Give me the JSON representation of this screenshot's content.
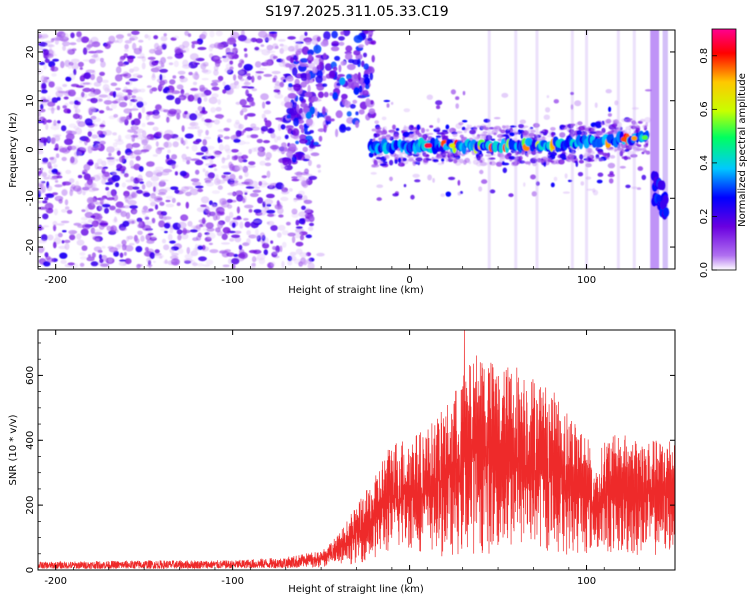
{
  "title": "S197.2025.311.05.33.C19",
  "chart_data": [
    {
      "type": "heatmap",
      "xlabel": "Height of straight line (km)",
      "ylabel": "Frequency (Hz)",
      "xlim": [
        -210,
        150
      ],
      "ylim": [
        -24.5,
        24.5
      ],
      "xticks": [
        -200,
        -100,
        0,
        100
      ],
      "yticks": [
        -20,
        -10,
        0,
        10,
        20
      ],
      "colorbar": {
        "label": "Normalized spectral amplitude",
        "range": [
          0.0,
          0.9
        ],
        "ticks": [
          "0.0",
          "0.2",
          "0.4",
          "0.6",
          "0.8"
        ],
        "ticks_values": [
          0.0,
          0.2,
          0.4,
          0.6,
          0.8
        ],
        "colors": [
          "#ffffff",
          "#b070f0",
          "#6a00e0",
          "#0000ff",
          "#00c8ff",
          "#00ff60",
          "#c8ff00",
          "#ffc800",
          "#ff0000",
          "#ff0090"
        ]
      },
      "features": {
        "noise_region_x": [
          -210,
          -60
        ],
        "noise_band_y": [
          -24,
          24
        ],
        "upper_cluster_x": [
          -70,
          -20
        ],
        "upper_cluster_y": [
          5,
          15
        ],
        "carrier_line": [
          [
            -22,
            0.5
          ],
          [
            0,
            0.8
          ],
          [
            40,
            0.8
          ],
          [
            80,
            1.0
          ],
          [
            110,
            1.8
          ],
          [
            135,
            2.5
          ]
        ],
        "carrier_peak_x": [
          10,
          125
        ],
        "lower_right_feature": [
          [
            138,
            -8
          ],
          [
            145,
            -11
          ]
        ]
      }
    },
    {
      "type": "line",
      "xlabel": "Height of straight line (km)",
      "ylabel": "SNR (10 * v/v)",
      "xlim": [
        -210,
        150
      ],
      "ylim": [
        0,
        740
      ],
      "xticks": [
        -200,
        -100,
        0,
        100
      ],
      "yticks": [
        0,
        200,
        400,
        600
      ],
      "color": "#ee2a2a",
      "envelope": {
        "x": [
          -210,
          -150,
          -100,
          -70,
          -50,
          -40,
          -30,
          -20,
          -15,
          -10,
          0,
          10,
          20,
          30,
          40,
          50,
          60,
          70,
          80,
          90,
          100,
          105,
          110,
          120,
          130,
          140,
          150
        ],
        "upper": [
          25,
          30,
          30,
          40,
          60,
          110,
          200,
          280,
          350,
          400,
          410,
          440,
          500,
          600,
          690,
          620,
          640,
          600,
          560,
          490,
          430,
          300,
          410,
          420,
          410,
          400,
          420
        ],
        "lower": [
          4,
          4,
          5,
          6,
          8,
          12,
          20,
          30,
          40,
          50,
          60,
          50,
          40,
          40,
          50,
          40,
          50,
          60,
          50,
          40,
          45,
          60,
          50,
          40,
          40,
          40,
          50
        ]
      },
      "peak": {
        "x": 31,
        "y": 745
      }
    }
  ]
}
